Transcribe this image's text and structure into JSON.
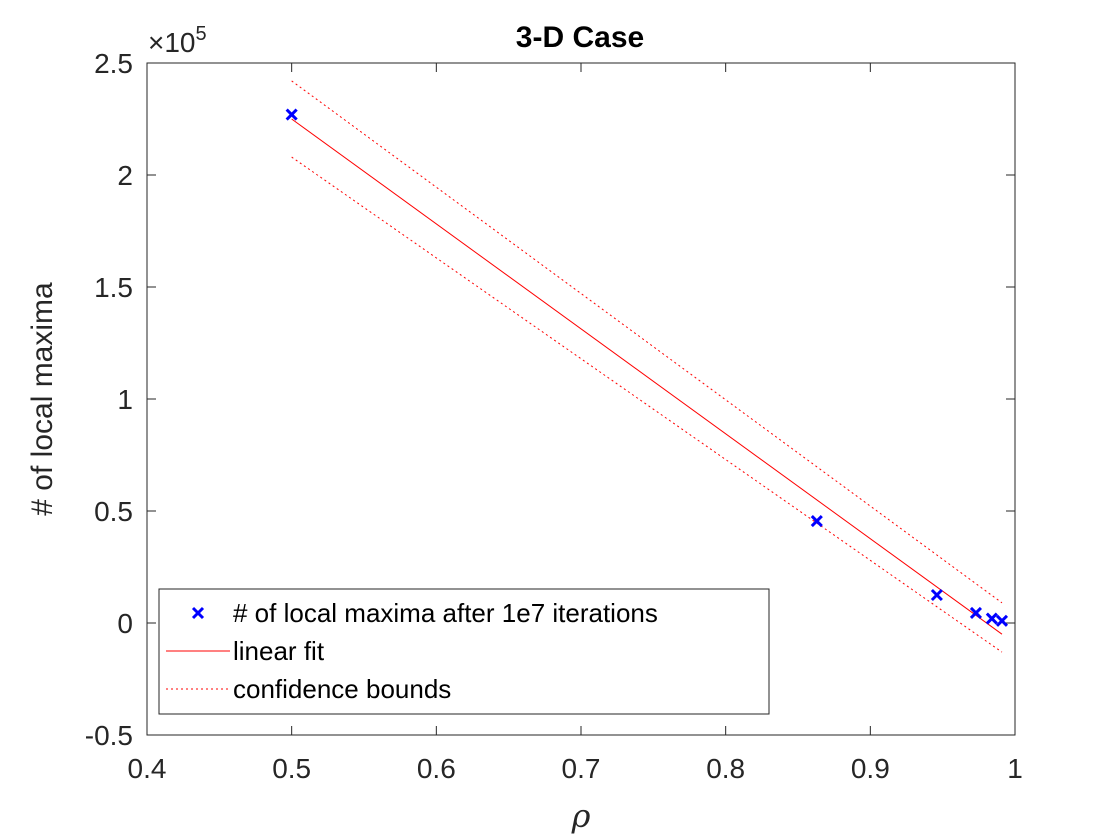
{
  "chart_data": {
    "type": "scatter",
    "title": "3-D Case",
    "xlabel": "ρ",
    "ylabel": "# of local maxima",
    "y_exponent": "×10^5",
    "y_exponent_parts": {
      "base": "×10",
      "power": "5"
    },
    "xlim": [
      0.4,
      1.0
    ],
    "ylim": [
      -0.5,
      2.5
    ],
    "x_ticks": [
      0.4,
      0.5,
      0.6,
      0.7,
      0.8,
      0.9,
      1.0
    ],
    "x_tick_labels": [
      "0.4",
      "0.5",
      "0.6",
      "0.7",
      "0.8",
      "0.9",
      "1"
    ],
    "y_ticks": [
      -0.5,
      0,
      0.5,
      1,
      1.5,
      2,
      2.5
    ],
    "y_tick_labels": [
      "-0.5",
      "0",
      "0.5",
      "1",
      "1.5",
      "2",
      "2.5"
    ],
    "grid": false,
    "legend_position": "bottom-left",
    "series": [
      {
        "name": "# of local maxima after 1e7 iterations",
        "kind": "markers",
        "marker": "x",
        "color": "#0000ff",
        "x": [
          0.5,
          0.863,
          0.946,
          0.973,
          0.984,
          0.991
        ],
        "y": [
          2.27,
          0.455,
          0.125,
          0.045,
          0.02,
          0.01
        ]
      },
      {
        "name": "linear fit",
        "kind": "line",
        "style": "solid",
        "color": "#ff0000",
        "x": [
          0.5,
          0.991
        ],
        "y": [
          2.25,
          -0.05
        ]
      },
      {
        "name": "confidence bounds",
        "kind": "band",
        "style": "dotted",
        "color": "#ff0000",
        "x": [
          0.5,
          0.991
        ],
        "upper": [
          2.42,
          0.09
        ],
        "lower": [
          2.08,
          -0.13
        ]
      }
    ]
  }
}
